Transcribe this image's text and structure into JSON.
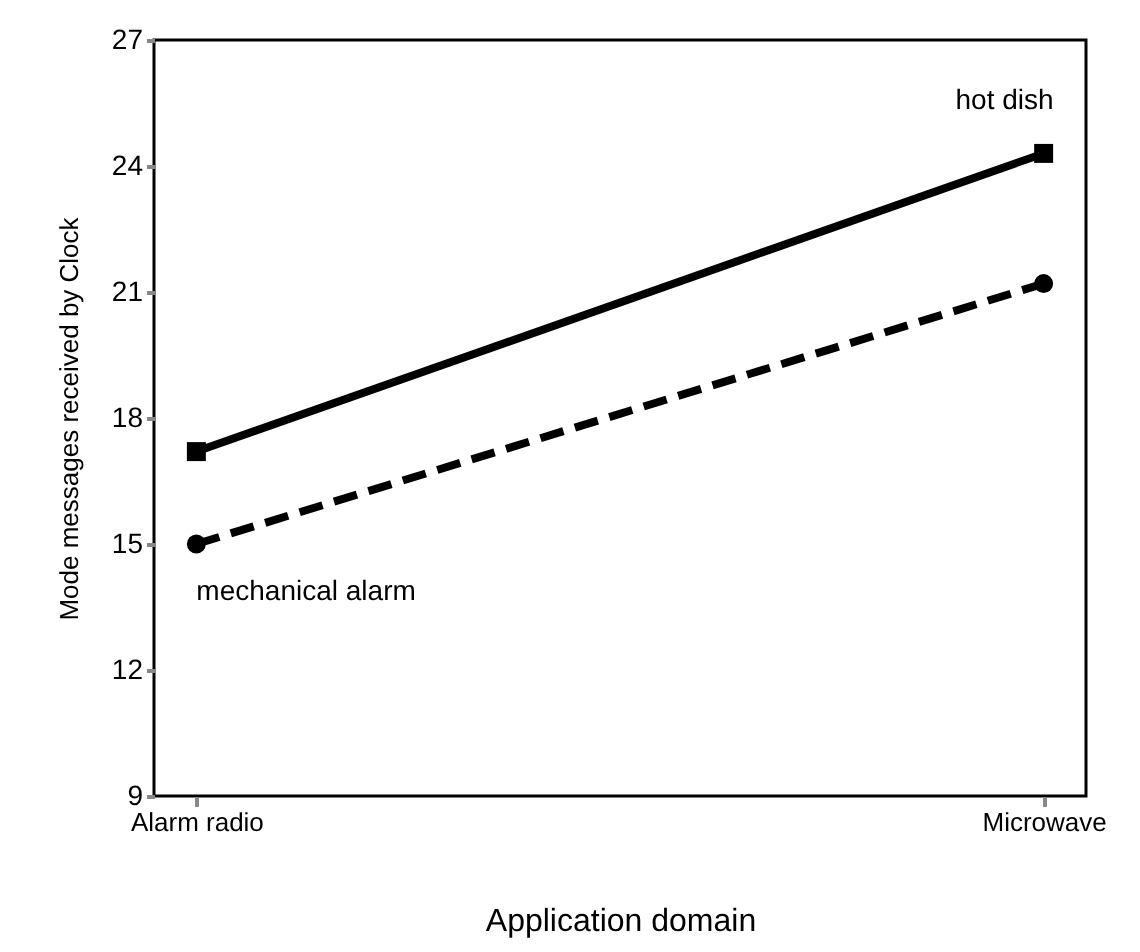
{
  "chart_data": {
    "type": "line",
    "xlabel": "Application domain",
    "ylabel": "Mode messages received by Clock",
    "categories": [
      "Alarm radio",
      "Microwave"
    ],
    "series": [
      {
        "name": "hot dish",
        "color": "#000000",
        "values": [
          17.2,
          24.3
        ],
        "marker": "square",
        "line_style": "solid"
      },
      {
        "name": "mechanical alarm",
        "color": "#000000",
        "values": [
          15.0,
          21.2
        ],
        "marker": "circle",
        "line_style": "dashed"
      }
    ],
    "ylim": [
      9,
      27
    ],
    "yticks": [
      9,
      12,
      15,
      18,
      21,
      24,
      27
    ],
    "grid": false,
    "legend": false
  }
}
